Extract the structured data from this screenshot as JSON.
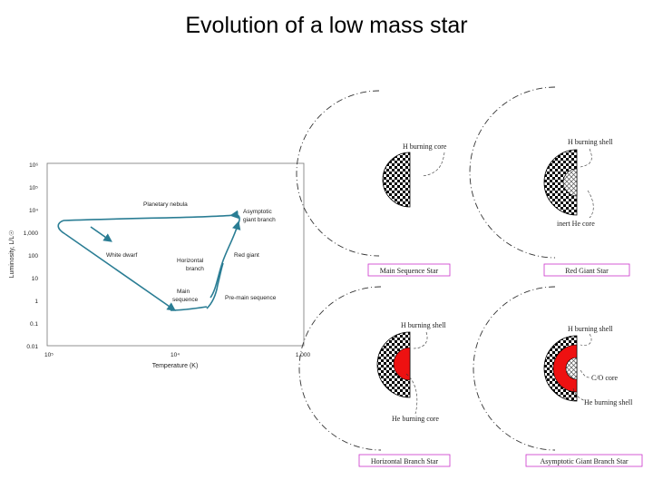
{
  "title": "Evolution of a low mass star",
  "hr_diagram": {
    "y_axis_label": "Luminosity, L/L☉",
    "x_axis_label": "Temperature (K)",
    "y_ticks": [
      "10⁶",
      "10⁵",
      "10⁴",
      "1,000",
      "100",
      "10",
      "1",
      "0.1",
      "0.01"
    ],
    "x_ticks": [
      "10⁵",
      "10⁴",
      "1,000"
    ],
    "annotations": {
      "planetary_nebula": "Planetary nebula",
      "agb_line1": "Asymptotic",
      "agb_line2": "giant branch",
      "white_dwarf": "White dwarf",
      "red_giant": "Red giant",
      "horizontal_line1": "Horizontal",
      "horizontal_line2": "branch",
      "main_line1": "Main",
      "main_line2": "sequence",
      "pre_main": "Pre-main sequence"
    }
  },
  "panels": {
    "main_sequence": {
      "callout": "H burning core",
      "caption": "Main Sequence Star"
    },
    "red_giant": {
      "callout_shell": "H burning shell",
      "callout_core": "inert He core",
      "caption": "Red Giant Star"
    },
    "horizontal_branch": {
      "callout_shell": "H burning shell",
      "callout_core": "He burning core",
      "caption": "Horizontal Branch Star"
    },
    "agb": {
      "callout_shell": "H burning shell",
      "callout_core": "C/O core",
      "callout_he": "He burning shell",
      "caption": "Asymptotic Giant Branch Star"
    }
  },
  "colors": {
    "track": "#2a7d94",
    "he_burning": "#ee1111",
    "caption_border": "#cc33cc"
  }
}
